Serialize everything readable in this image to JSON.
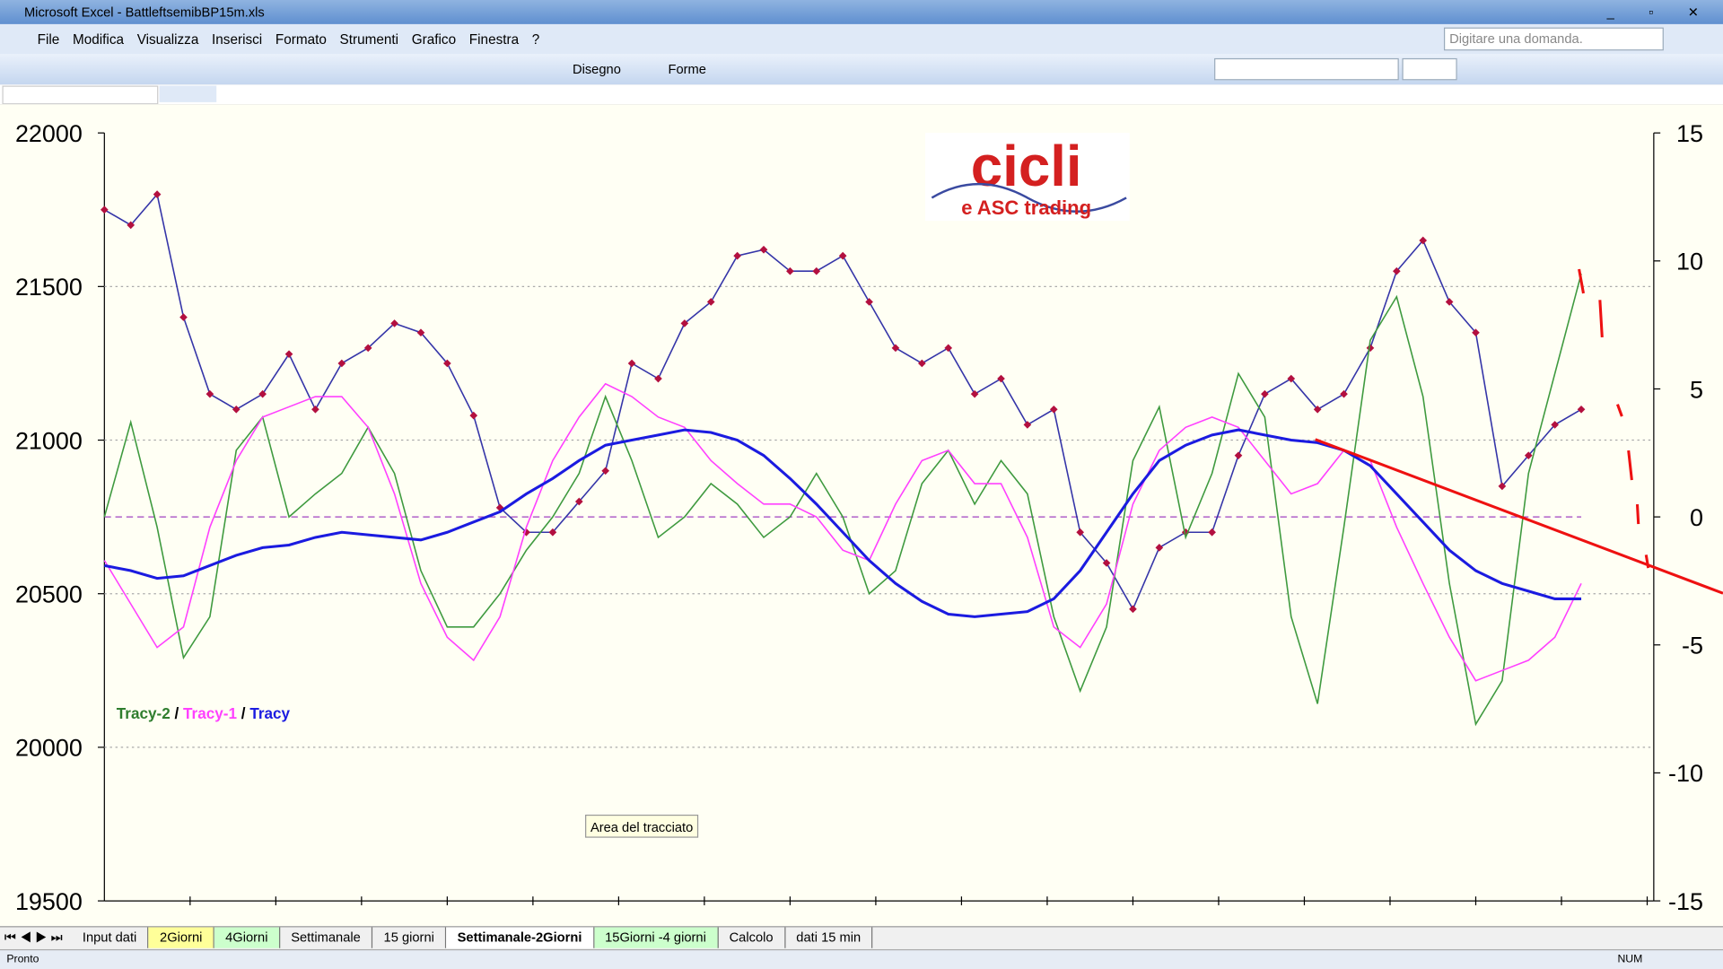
{
  "window": {
    "title": "Microsoft Excel - BattleftsemibBP15m.xls"
  },
  "menu": [
    "File",
    "Modifica",
    "Visualizza",
    "Inserisci",
    "Formato",
    "Strumenti",
    "Grafico",
    "Finestra",
    "?"
  ],
  "question_box": "Digitare una domanda.",
  "toolbar": {
    "draw": "Disegno",
    "shapes": "Forme"
  },
  "logo": {
    "title": "cicli",
    "subtitle": "e ASC trading"
  },
  "tooltip": "Area del tracciato",
  "tabs": [
    "Input dati",
    "2Giorni",
    "4Giorni",
    "Settimanale",
    "15 giorni",
    "Settimanale-2Giorni",
    "15Giorni -4 giorni",
    "Calcolo",
    "dati 15 min"
  ],
  "status": {
    "left": "Pronto",
    "right": "NUM"
  },
  "chart_data": {
    "type": "line",
    "ylim": [
      19500,
      22000
    ],
    "yticks": [
      19500,
      20000,
      20500,
      21000,
      21500,
      22000
    ],
    "y2lim": [
      -15,
      15
    ],
    "y2ticks": [
      -15,
      -10,
      -5,
      0,
      5,
      10,
      15
    ],
    "series": [
      {
        "color": "#3535a8",
        "marker_color": "#b3103f",
        "values": [
          21750,
          21700,
          21800,
          21400,
          21150,
          21100,
          21150,
          21280,
          21100,
          21250,
          21300,
          21380,
          21350,
          21250,
          21080,
          20780,
          20700,
          20700,
          20800,
          20900,
          21250,
          21200,
          21380,
          21450,
          21600,
          21620,
          21550,
          21550,
          21600,
          21450,
          21300,
          21250,
          21300,
          21150,
          21200,
          21050,
          21100,
          20700,
          20600,
          20450,
          20650,
          20700,
          20700,
          20950,
          21150,
          21200,
          21100,
          21150,
          21300,
          21550,
          21650,
          21450,
          21350,
          20850,
          20950,
          21050,
          21100
        ]
      },
      {
        "name": "Tracy-2",
        "color": "#3f9a3f",
        "axis": "y2",
        "values": [
          0,
          3.7,
          -0.4,
          -5.5,
          -3.9,
          2.6,
          3.9,
          0,
          0.9,
          1.7,
          3.5,
          1.7,
          -2.1,
          -4.3,
          -4.3,
          -3,
          -1.3,
          0,
          1.7,
          4.7,
          2.2,
          -0.8,
          0,
          1.3,
          0.5,
          -0.8,
          0,
          1.7,
          0,
          -3,
          -2.1,
          1.3,
          2.6,
          0.5,
          2.2,
          0.9,
          -3.9,
          -6.8,
          -4.3,
          2.2,
          4.3,
          -0.8,
          1.7,
          5.6,
          3.9,
          -3.9,
          -7.3,
          -0.4,
          6.9,
          8.6,
          4.7,
          -2.6,
          -8.1,
          -6.4,
          1.7,
          5.6,
          9.5
        ]
      },
      {
        "name": "Tracy-1",
        "color": "#ff40ff",
        "axis": "y2",
        "values": [
          -1.7,
          -3.4,
          -5.1,
          -4.3,
          -0.4,
          2.2,
          3.9,
          4.3,
          4.7,
          4.7,
          3.5,
          0.9,
          -2.6,
          -4.7,
          -5.6,
          -3.9,
          -0.4,
          2.2,
          3.9,
          5.2,
          4.7,
          3.9,
          3.5,
          2.2,
          1.3,
          0.5,
          0.5,
          0,
          -1.3,
          -1.7,
          0.5,
          2.2,
          2.6,
          1.3,
          1.3,
          -0.8,
          -4.3,
          -5.1,
          -3.4,
          0.5,
          2.6,
          3.5,
          3.9,
          3.5,
          2.2,
          0.9,
          1.3,
          2.6,
          2.2,
          -0.4,
          -2.6,
          -4.7,
          -6.4,
          -6,
          -5.6,
          -4.7,
          -2.6
        ]
      },
      {
        "name": "Tracy",
        "color": "#1b1be0",
        "axis": "y2",
        "values": [
          -1.9,
          -2.1,
          -2.4,
          -2.3,
          -1.9,
          -1.5,
          -1.2,
          -1.1,
          -0.8,
          -0.6,
          -0.7,
          -0.8,
          -0.9,
          -0.6,
          -0.2,
          0.2,
          0.9,
          1.5,
          2.2,
          2.8,
          3,
          3.2,
          3.4,
          3.3,
          3,
          2.4,
          1.5,
          0.5,
          -0.6,
          -1.7,
          -2.6,
          -3.3,
          -3.8,
          -3.9,
          -3.8,
          -3.7,
          -3.2,
          -2.1,
          -0.6,
          0.9,
          2.2,
          2.8,
          3.2,
          3.4,
          3.2,
          3,
          2.9,
          2.6,
          2,
          0.9,
          -0.2,
          -1.3,
          -2.1,
          -2.6,
          -2.9,
          -3.2,
          -3.2
        ]
      }
    ]
  }
}
